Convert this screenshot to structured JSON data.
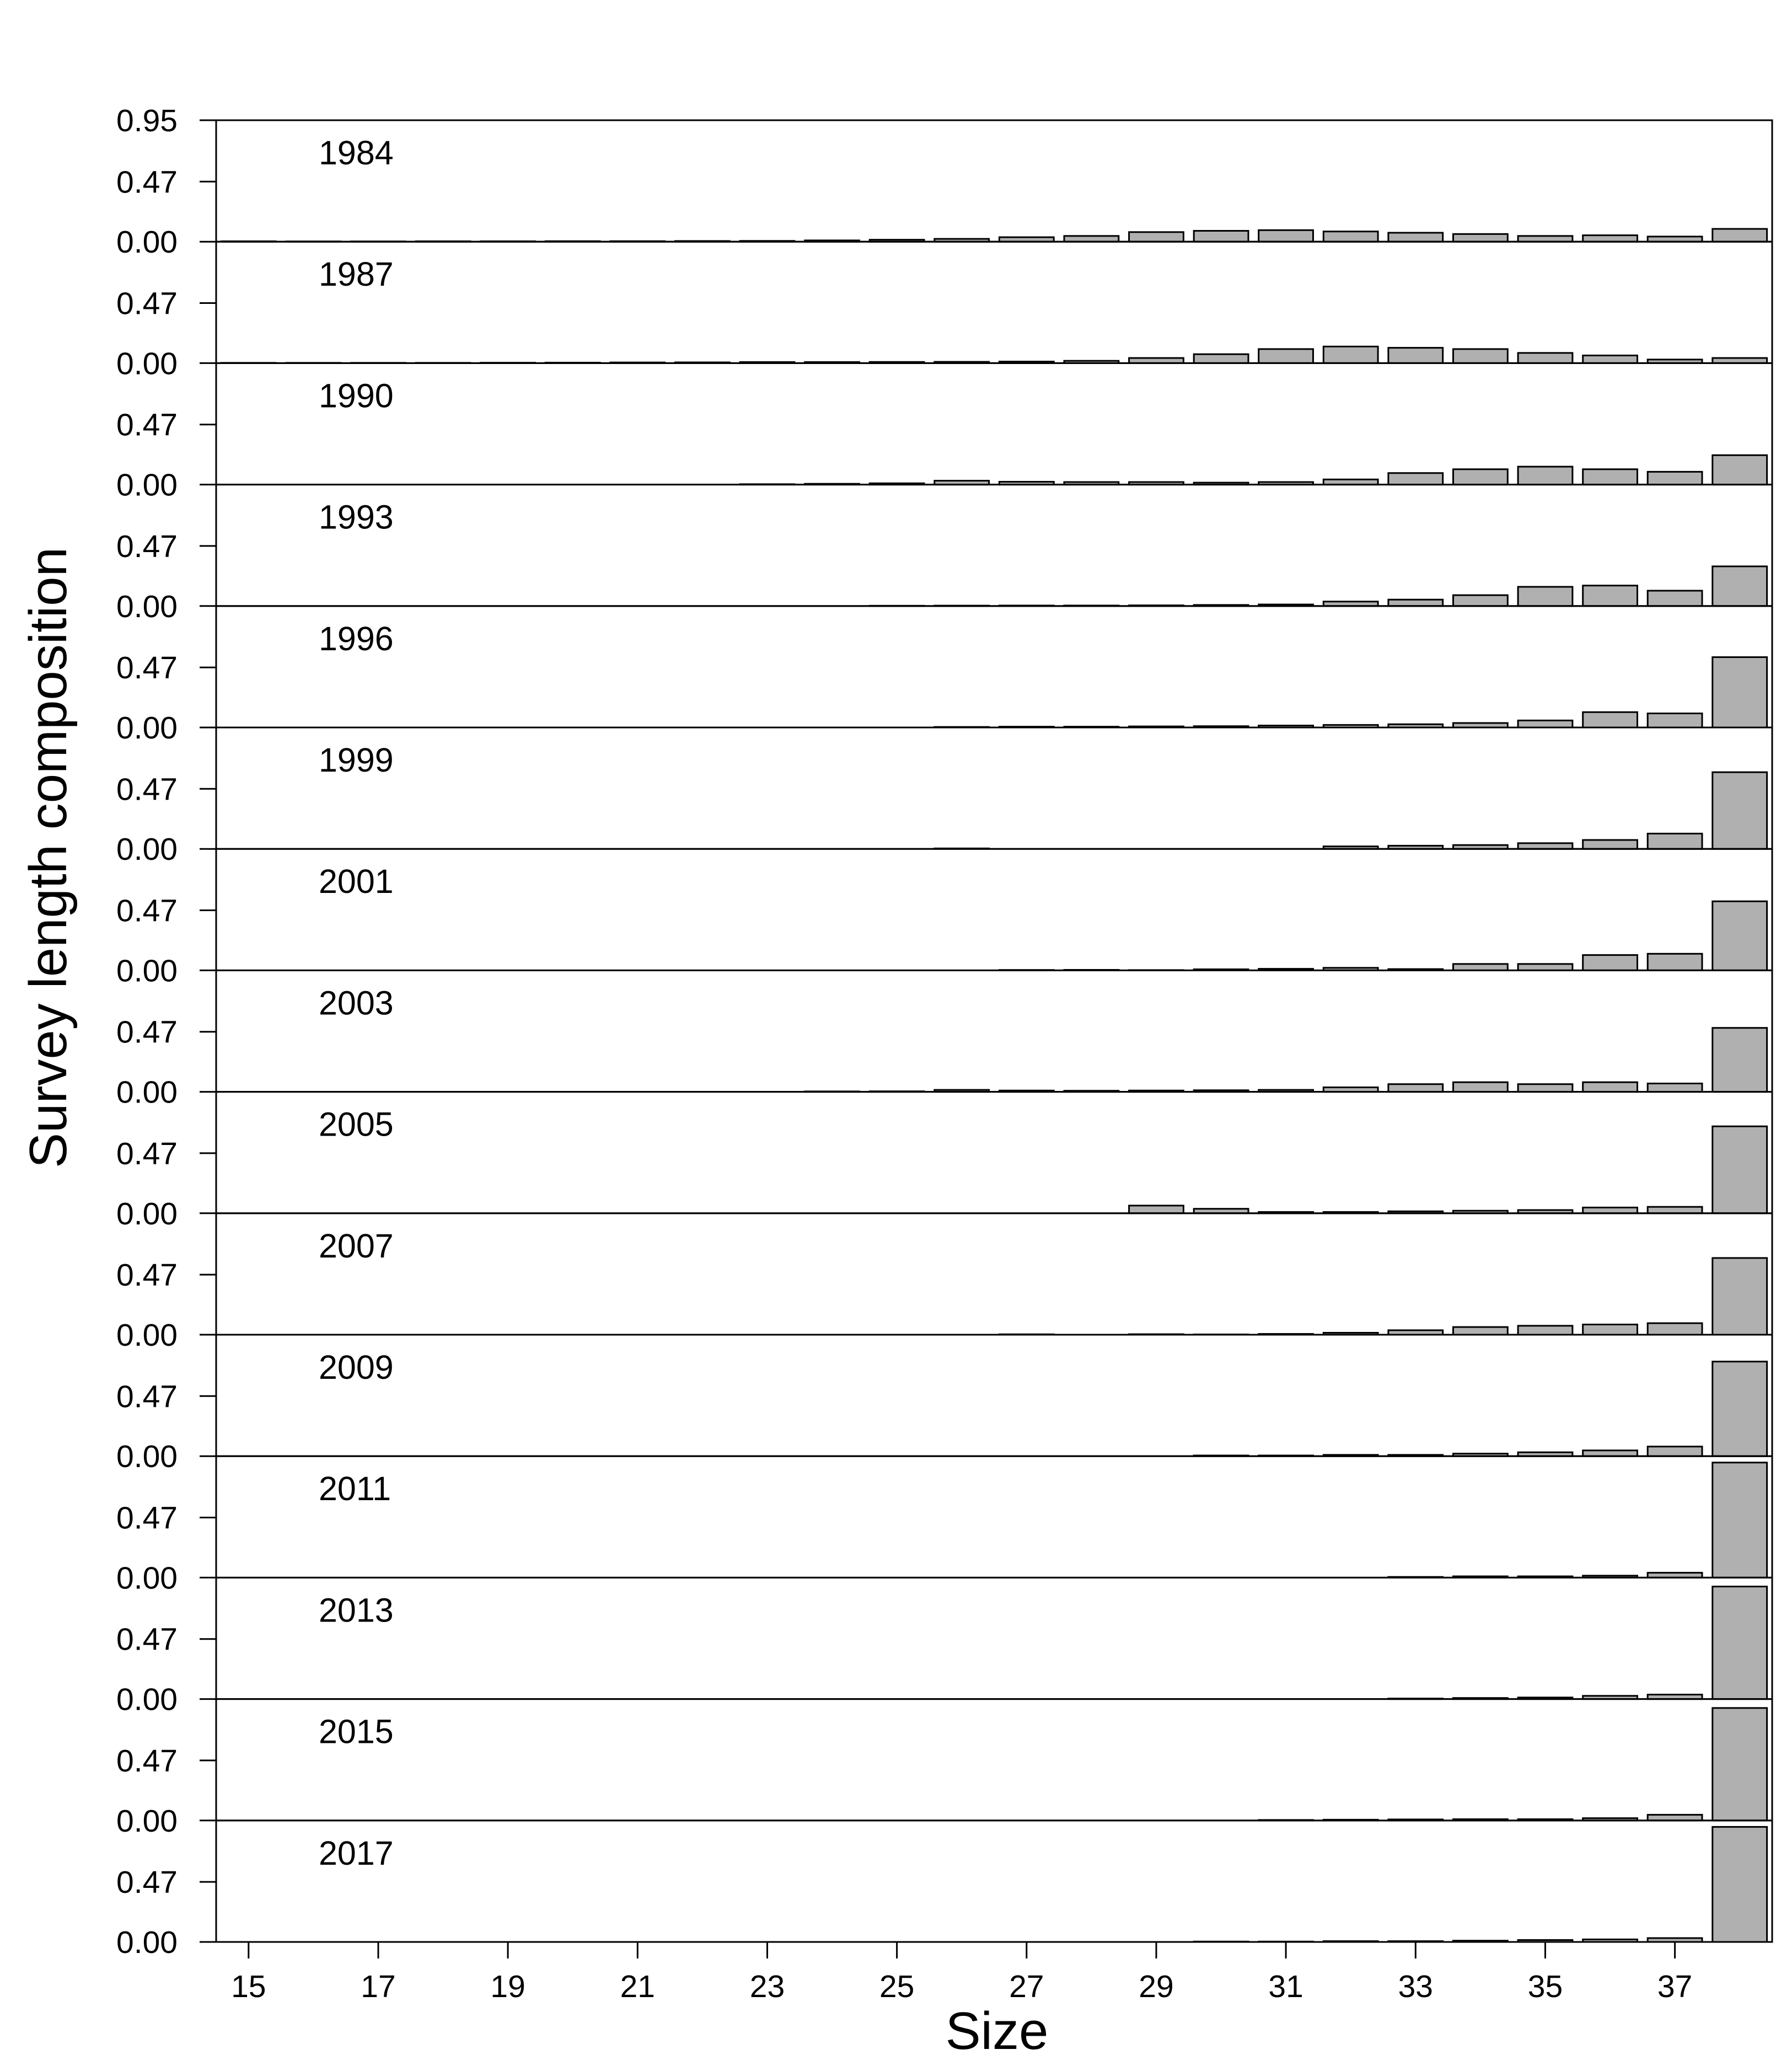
{
  "chart_data": {
    "type": "bar",
    "ylabel": "Survey length composition",
    "xlabel": "Size",
    "ylim": [
      0,
      0.95
    ],
    "yticks": [
      "0.00",
      "0.47",
      "0.95"
    ],
    "xticks": [
      "15",
      "17",
      "19",
      "21",
      "23",
      "25",
      "27",
      "29",
      "31",
      "33",
      "35",
      "37"
    ],
    "categories": [
      15,
      16,
      17,
      18,
      19,
      20,
      21,
      22,
      23,
      24,
      25,
      26,
      27,
      28,
      29,
      30,
      31,
      32,
      33,
      34,
      35,
      36,
      37,
      38
    ],
    "bar_color": "#b0b0b0",
    "panels": [
      {
        "year": "1984",
        "values": [
          0.003,
          0.002,
          0.002,
          0.003,
          0.003,
          0.004,
          0.004,
          0.005,
          0.006,
          0.01,
          0.015,
          0.022,
          0.035,
          0.045,
          0.075,
          0.085,
          0.09,
          0.08,
          0.07,
          0.06,
          0.045,
          0.05,
          0.04,
          0.1
        ]
      },
      {
        "year": "1987",
        "values": [
          0.002,
          0.002,
          0.002,
          0.002,
          0.003,
          0.004,
          0.005,
          0.006,
          0.008,
          0.008,
          0.009,
          0.01,
          0.012,
          0.018,
          0.04,
          0.07,
          0.11,
          0.13,
          0.12,
          0.11,
          0.08,
          0.06,
          0.028,
          0.04
        ]
      },
      {
        "year": "1990",
        "values": [
          0,
          0,
          0,
          0,
          0,
          0,
          0,
          0,
          0.003,
          0.006,
          0.01,
          0.03,
          0.022,
          0.02,
          0.02,
          0.015,
          0.02,
          0.04,
          0.09,
          0.12,
          0.14,
          0.12,
          0.1,
          0.23
        ]
      },
      {
        "year": "1993",
        "values": [
          0,
          0,
          0,
          0,
          0,
          0,
          0,
          0,
          0,
          0,
          0.002,
          0.003,
          0.004,
          0.004,
          0.005,
          0.008,
          0.012,
          0.035,
          0.05,
          0.085,
          0.15,
          0.16,
          0.12,
          0.31
        ]
      },
      {
        "year": "1996",
        "values": [
          0,
          0,
          0,
          0,
          0,
          0,
          0,
          0,
          0,
          0,
          0,
          0.004,
          0.006,
          0.006,
          0.008,
          0.01,
          0.015,
          0.02,
          0.025,
          0.035,
          0.055,
          0.12,
          0.11,
          0.55
        ]
      },
      {
        "year": "1999",
        "values": [
          0,
          0,
          0,
          0,
          0,
          0,
          0,
          0,
          0,
          0,
          0,
          0.004,
          0,
          0,
          0,
          0,
          0,
          0.02,
          0.025,
          0.03,
          0.045,
          0.07,
          0.12,
          0.6
        ]
      },
      {
        "year": "2001",
        "values": [
          0,
          0,
          0,
          0,
          0,
          0,
          0,
          0,
          0,
          0,
          0,
          0,
          0.003,
          0.004,
          0.002,
          0.008,
          0.012,
          0.02,
          0.01,
          0.05,
          0.05,
          0.12,
          0.13,
          0.54
        ]
      },
      {
        "year": "2003",
        "values": [
          0,
          0,
          0,
          0,
          0,
          0,
          0,
          0,
          0,
          0.003,
          0.004,
          0.015,
          0.01,
          0.008,
          0.01,
          0.012,
          0.015,
          0.035,
          0.06,
          0.075,
          0.06,
          0.075,
          0.065,
          0.5
        ]
      },
      {
        "year": "2005",
        "values": [
          0,
          0,
          0,
          0,
          0,
          0,
          0,
          0,
          0,
          0,
          0,
          0,
          0,
          0,
          0.06,
          0.035,
          0.01,
          0.01,
          0.015,
          0.02,
          0.025,
          0.045,
          0.05,
          0.68
        ]
      },
      {
        "year": "2007",
        "values": [
          0,
          0,
          0,
          0,
          0,
          0,
          0,
          0,
          0,
          0,
          0,
          0,
          0.003,
          0,
          0.004,
          0.002,
          0.006,
          0.015,
          0.035,
          0.06,
          0.07,
          0.08,
          0.09,
          0.6
        ]
      },
      {
        "year": "2009",
        "values": [
          0,
          0,
          0,
          0,
          0,
          0,
          0,
          0,
          0,
          0,
          0,
          0,
          0,
          0,
          0,
          0.005,
          0.005,
          0.01,
          0.01,
          0.02,
          0.03,
          0.045,
          0.075,
          0.74
        ]
      },
      {
        "year": "2011",
        "values": [
          0,
          0,
          0,
          0,
          0,
          0,
          0,
          0,
          0,
          0,
          0,
          0,
          0,
          0,
          0,
          0,
          0,
          0,
          0.005,
          0.01,
          0.01,
          0.015,
          0.038,
          0.9
        ]
      },
      {
        "year": "2013",
        "values": [
          0,
          0,
          0,
          0,
          0,
          0,
          0,
          0,
          0,
          0,
          0,
          0,
          0,
          0,
          0,
          0,
          0,
          0,
          0.004,
          0.008,
          0.012,
          0.025,
          0.035,
          0.88
        ]
      },
      {
        "year": "2015",
        "values": [
          0,
          0,
          0,
          0,
          0,
          0,
          0,
          0,
          0,
          0,
          0,
          0,
          0,
          0,
          0,
          0,
          0.004,
          0.006,
          0.008,
          0.01,
          0.01,
          0.018,
          0.045,
          0.88
        ]
      },
      {
        "year": "2017",
        "values": [
          0,
          0,
          0,
          0,
          0,
          0,
          0,
          0,
          0,
          0,
          0,
          0,
          0,
          0,
          0,
          0.003,
          0.003,
          0.006,
          0.006,
          0.01,
          0.015,
          0.02,
          0.03,
          0.9
        ]
      }
    ]
  }
}
